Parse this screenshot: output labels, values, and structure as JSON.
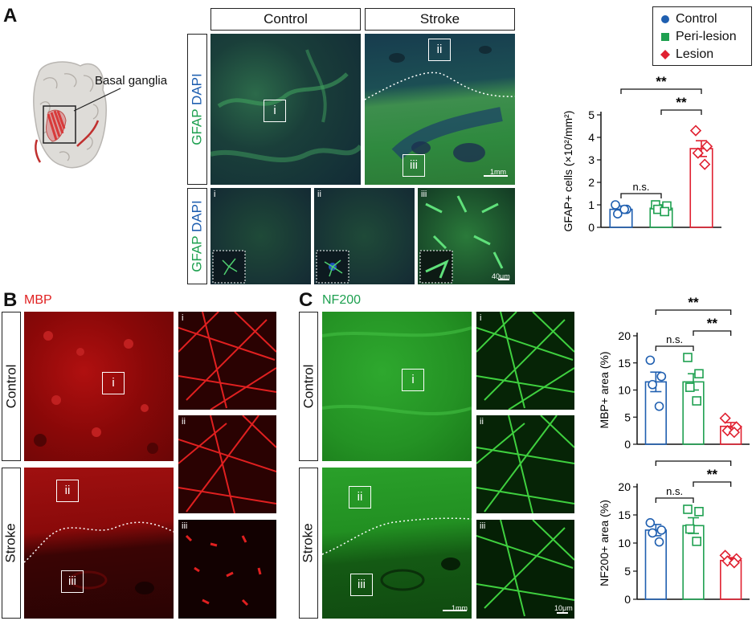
{
  "panels": {
    "a": {
      "letter": "A",
      "brain_label": "Basal ganglia",
      "col_control": "Control",
      "col_stroke": "Stroke",
      "stain_gfap": "GFAP",
      "stain_dapi": "DAPI",
      "roi_i": "i",
      "roi_ii": "ii",
      "roi_iii": "iii",
      "scale_1mm": "1mm",
      "scale_40um": "40μm"
    },
    "b": {
      "letter": "B",
      "stain": "MBP",
      "row_control": "Control",
      "row_stroke": "Stroke",
      "roi_i": "i",
      "roi_ii": "ii",
      "roi_iii": "iii"
    },
    "c": {
      "letter": "C",
      "stain": "NF200",
      "row_control": "Control",
      "row_stroke": "Stroke",
      "roi_i": "i",
      "roi_ii": "ii",
      "roi_iii": "iii",
      "scale_1mm": "1mm",
      "scale_10um": "10μm"
    }
  },
  "legend": [
    {
      "label": "Control",
      "color": "#1f5fb0",
      "shape": "circle"
    },
    {
      "label": "Peri-lesion",
      "color": "#1ea050",
      "shape": "square"
    },
    {
      "label": "Lesion",
      "color": "#e02030",
      "shape": "diamond"
    }
  ],
  "colors": {
    "control": "#1f5fb0",
    "peri": "#1ea050",
    "lesion": "#e02030"
  },
  "chart_data": [
    {
      "type": "bar",
      "categories": [
        "Control",
        "Peri-lesion",
        "Lesion"
      ],
      "values": [
        0.8,
        0.85,
        3.5
      ],
      "errors": [
        0.15,
        0.15,
        0.35
      ],
      "points": [
        [
          1.0,
          0.8,
          0.6,
          0.8
        ],
        [
          1.0,
          0.95,
          0.8,
          0.7
        ],
        [
          4.3,
          3.6,
          3.3,
          2.8
        ]
      ],
      "ylabel": "GFAP+ cells (×10²/mm²)",
      "ylim": [
        0,
        5
      ],
      "yticks": [
        0,
        1,
        2,
        3,
        4,
        5
      ],
      "significance": [
        {
          "from": 0,
          "to": 2,
          "label": "**"
        },
        {
          "from": 1,
          "to": 2,
          "label": "**"
        },
        {
          "from": 0,
          "to": 1,
          "label": "n.s."
        }
      ]
    },
    {
      "type": "bar",
      "categories": [
        "Control",
        "Peri-lesion",
        "Lesion"
      ],
      "values": [
        11.5,
        11.5,
        3.3
      ],
      "errors": [
        1.8,
        1.5,
        0.7
      ],
      "points": [
        [
          15.5,
          12.5,
          11.0,
          7.0
        ],
        [
          16.0,
          13.0,
          10.5,
          8.0
        ],
        [
          4.8,
          3.2,
          2.5,
          2.2
        ]
      ],
      "ylabel": "MBP+ area (%)",
      "ylim": [
        0,
        20
      ],
      "yticks": [
        0,
        5,
        10,
        15,
        20
      ],
      "significance": [
        {
          "from": 0,
          "to": 2,
          "label": "**"
        },
        {
          "from": 1,
          "to": 2,
          "label": "**"
        },
        {
          "from": 0,
          "to": 1,
          "label": "n.s."
        }
      ]
    },
    {
      "type": "bar",
      "categories": [
        "Control",
        "Peri-lesion",
        "Lesion"
      ],
      "values": [
        12.3,
        13.1,
        6.9
      ],
      "errors": [
        1.0,
        1.4,
        0.5
      ],
      "points": [
        [
          13.6,
          12.3,
          11.8,
          10.2
        ],
        [
          16.0,
          15.6,
          12.5,
          10.3
        ],
        [
          7.8,
          7.2,
          6.8,
          6.5
        ]
      ],
      "ylabel": "NF200+ area (%)",
      "ylim": [
        0,
        20
      ],
      "yticks": [
        0,
        5,
        10,
        15,
        20
      ],
      "significance": [
        {
          "from": 0,
          "to": 2,
          "label": "**"
        },
        {
          "from": 1,
          "to": 2,
          "label": "**"
        },
        {
          "from": 0,
          "to": 1,
          "label": "n.s."
        }
      ]
    }
  ]
}
